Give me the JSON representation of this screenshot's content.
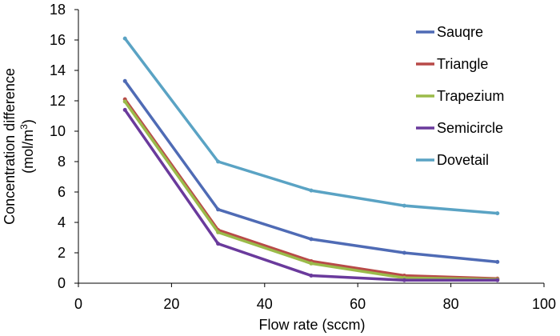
{
  "chart_data": {
    "type": "line",
    "title": "",
    "xlabel": "Flow rate (sccm)",
    "ylabel_line1": "Concentration difference",
    "ylabel_unit_prefix": "(mol/m",
    "ylabel_unit_sup": "3",
    "ylabel_unit_suffix": ")",
    "xlim": [
      0,
      100
    ],
    "ylim": [
      0,
      18
    ],
    "xticks": [
      0,
      20,
      40,
      60,
      80,
      100
    ],
    "yticks": [
      0,
      2,
      4,
      6,
      8,
      10,
      12,
      14,
      16,
      18
    ],
    "grid": false,
    "legend_position": "top-right",
    "x": [
      10,
      30,
      50,
      70,
      90
    ],
    "series": [
      {
        "name": "Sauqre",
        "color": "#4F6BB5",
        "values": [
          13.3,
          4.85,
          2.9,
          2.0,
          1.4
        ]
      },
      {
        "name": "Triangle",
        "color": "#B84A48",
        "values": [
          12.1,
          3.5,
          1.45,
          0.5,
          0.3
        ]
      },
      {
        "name": "Trapezium",
        "color": "#9BBB4A",
        "values": [
          11.95,
          3.35,
          1.3,
          0.35,
          0.25
        ]
      },
      {
        "name": "Semicircle",
        "color": "#6A3A9C",
        "values": [
          11.4,
          2.6,
          0.5,
          0.2,
          0.2
        ]
      },
      {
        "name": "Dovetail",
        "color": "#5AA3C4",
        "values": [
          16.1,
          8.0,
          6.1,
          5.1,
          4.6
        ]
      }
    ]
  }
}
